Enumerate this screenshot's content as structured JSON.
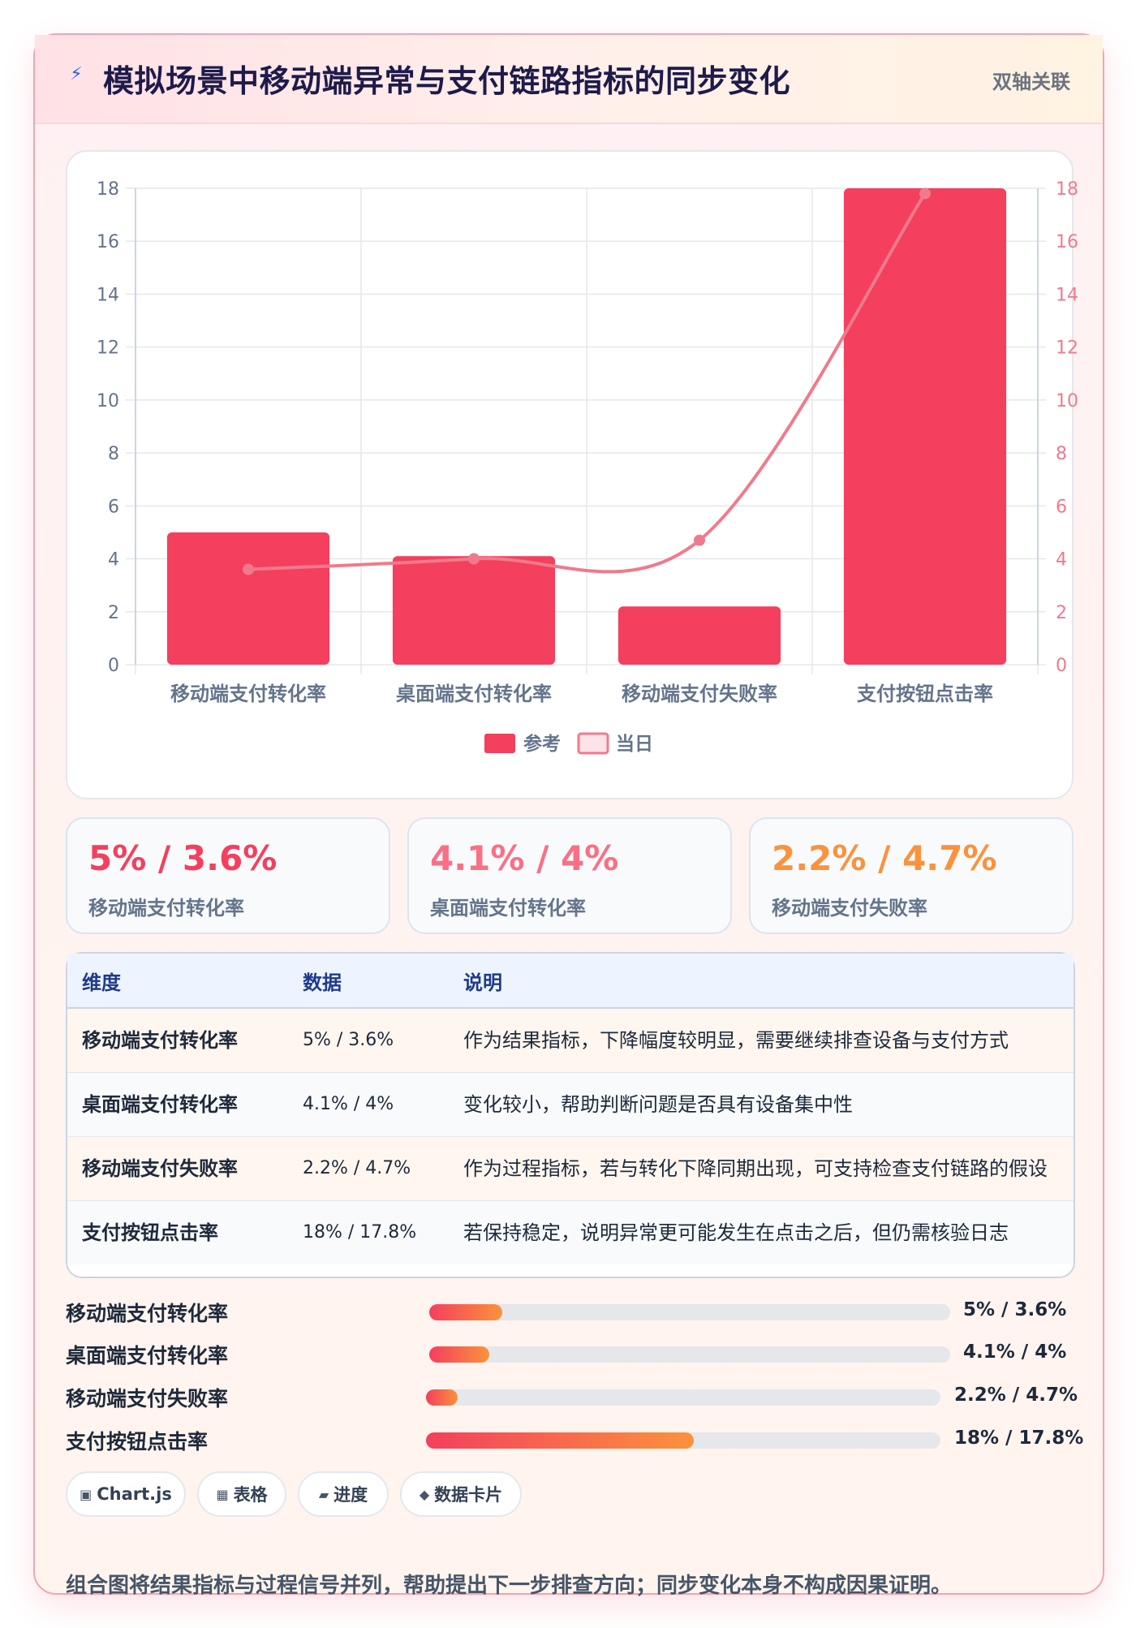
{
  "header": {
    "title": "模拟场景中移动端异常与支付链路指标的同步变化",
    "tag": "双轴关联",
    "icon": "lightning-icon"
  },
  "chart_data": {
    "type": "bar",
    "categories": [
      "移动端支付转化率",
      "桌面端支付转化率",
      "移动端支付失败率",
      "支付按钮点击率"
    ],
    "series": [
      {
        "name": "参考",
        "type": "bar",
        "values": [
          5,
          4.1,
          2.2,
          18
        ],
        "color": "#f43f5e"
      },
      {
        "name": "当日",
        "type": "line",
        "values": [
          3.6,
          4,
          4.7,
          17.8
        ],
        "color": "#f07a8c"
      }
    ],
    "y_left": {
      "min": 0,
      "max": 18,
      "ticks": [
        0,
        2,
        4,
        6,
        8,
        10,
        12,
        14,
        16,
        18
      ]
    },
    "y_right": {
      "min": 0,
      "max": 18,
      "ticks": [
        0,
        2,
        4,
        6,
        8,
        10,
        12,
        14,
        16,
        18
      ]
    },
    "grid": true,
    "legend_position": "bottom"
  },
  "stats": [
    {
      "value": "5% / 3.6%",
      "label": "移动端支付转化率",
      "color": "#f43f5e"
    },
    {
      "value": "4.1% / 4%",
      "label": "桌面端支付转化率",
      "color": "#fb6f84"
    },
    {
      "value": "2.2% / 4.7%",
      "label": "移动端支付失败率",
      "color": "#fb923c"
    }
  ],
  "table": {
    "headers": [
      "维度",
      "数据",
      "说明"
    ],
    "rows": [
      {
        "dim": "移动端支付转化率",
        "val": "5% / 3.6%",
        "desc": "作为结果指标，下降幅度较明显，需要继续排查设备与支付方式"
      },
      {
        "dim": "桌面端支付转化率",
        "val": "4.1% / 4%",
        "desc": "变化较小，帮助判断问题是否具有设备集中性"
      },
      {
        "dim": "移动端支付失败率",
        "val": "2.2% / 4.7%",
        "desc": "作为过程指标，若与转化下降同期出现，可支持检查支付链路的假设"
      },
      {
        "dim": "支付按钮点击率",
        "val": "18% / 17.8%",
        "desc": "若保持稳定，说明异常更可能发生在点击之后，但仍需核验日志"
      }
    ]
  },
  "progress": [
    {
      "label": "移动端支付转化率",
      "value": "5% / 3.6%",
      "fill": 0.14
    },
    {
      "label": "桌面端支付转化率",
      "value": "4.1% / 4%",
      "fill": 0.115
    },
    {
      "label": "移动端支付失败率",
      "value": "2.2% / 4.7%",
      "fill": 0.062
    },
    {
      "label": "支付按钮点击率",
      "value": "18% / 17.8%",
      "fill": 0.52
    }
  ],
  "chips": [
    {
      "icon": "chart-icon",
      "glyph": "▣",
      "label": "Chart.js"
    },
    {
      "icon": "table-icon",
      "glyph": "▦",
      "label": "表格"
    },
    {
      "icon": "progress-icon",
      "glyph": "▰",
      "label": "进度"
    },
    {
      "icon": "card-icon",
      "glyph": "◆",
      "label": "数据卡片"
    }
  ],
  "footer": {
    "note": "组合图将结果指标与过程信号并列，帮助提出下一步排查方向；同步变化本身不构成因果证明。"
  }
}
